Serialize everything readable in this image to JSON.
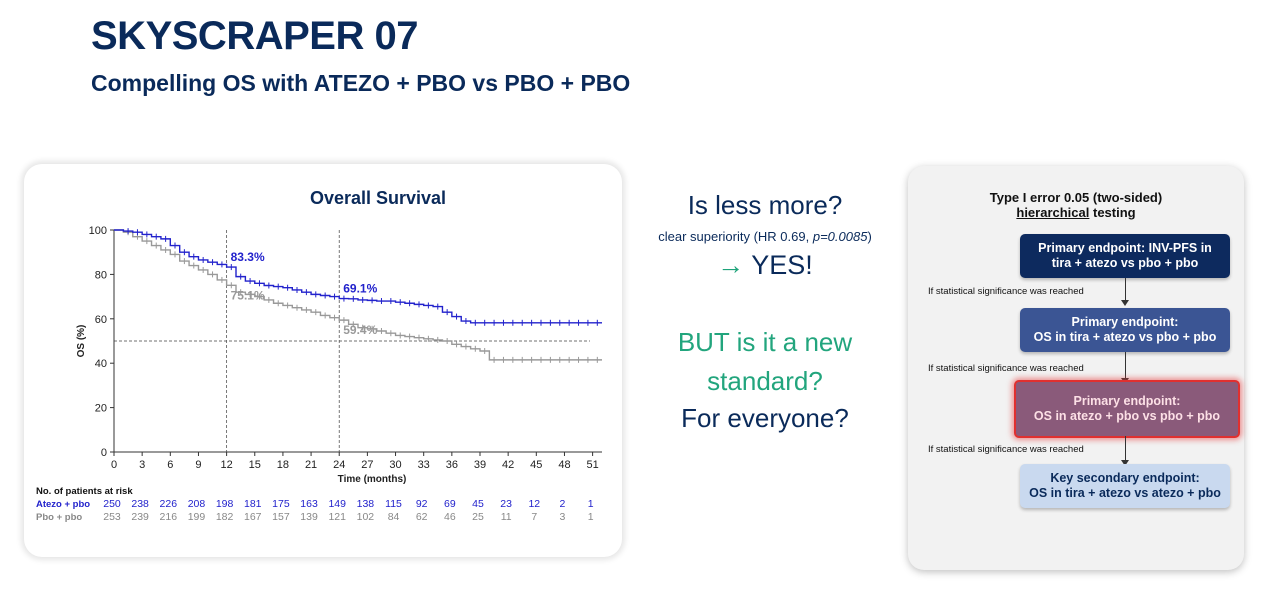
{
  "slide": {
    "title": "SKYSCRAPER 07",
    "subtitle": "Compelling OS with ATEZO + PBO vs PBO + PBO"
  },
  "chart_data": {
    "type": "line",
    "title": "Overall Survival",
    "xlabel": "Time (months)",
    "ylabel": "OS (%)",
    "xlim": [
      0,
      52
    ],
    "ylim": [
      0,
      100
    ],
    "x_ticks": [
      0,
      3,
      6,
      9,
      12,
      15,
      18,
      21,
      24,
      27,
      30,
      33,
      36,
      39,
      42,
      45,
      48,
      51
    ],
    "y_ticks": [
      0,
      20,
      40,
      60,
      80,
      100
    ],
    "colors": {
      "atezo": "#2222cc",
      "pbo": "#999999"
    },
    "series": [
      {
        "name": "Atezo + pbo",
        "x": [
          0,
          1,
          2,
          3,
          4,
          5,
          6,
          7,
          8,
          9,
          10,
          11,
          12,
          13,
          14,
          15,
          16,
          17,
          18,
          19,
          20,
          21,
          22,
          23,
          24,
          25,
          26,
          27,
          28,
          29,
          30,
          31,
          32,
          33,
          34,
          35,
          36,
          37,
          38,
          39,
          40,
          41,
          42,
          43,
          44,
          45,
          46,
          47,
          48,
          49,
          50,
          51,
          52
        ],
        "y": [
          100,
          99.5,
          99,
          98,
          97,
          96,
          93,
          90,
          88,
          86.5,
          85.5,
          84.5,
          83.3,
          79,
          77,
          76,
          75,
          74.5,
          74,
          73,
          72,
          71,
          70.5,
          70,
          69.1,
          69,
          68.5,
          68.3,
          68,
          68,
          67.5,
          67,
          66.5,
          66,
          65.5,
          63,
          61,
          59,
          58.2,
          58.2,
          58.2,
          58.2,
          58.2,
          58.2,
          58.2,
          58.2,
          58.2,
          58.2,
          58.2,
          58.2,
          58.2,
          58.2,
          58.2
        ]
      },
      {
        "name": "Pbo + pbo",
        "x": [
          0,
          1,
          2,
          3,
          4,
          5,
          6,
          7,
          8,
          9,
          10,
          11,
          12,
          13,
          14,
          15,
          16,
          17,
          18,
          19,
          20,
          21,
          22,
          23,
          24,
          25,
          26,
          27,
          28,
          29,
          30,
          31,
          32,
          33,
          34,
          35,
          36,
          37,
          38,
          39,
          40,
          41,
          42,
          43,
          44,
          45,
          46,
          47,
          48,
          49,
          50,
          51,
          52
        ],
        "y": [
          100,
          99,
          97,
          95,
          93,
          91,
          89,
          86,
          84,
          82,
          80,
          77.5,
          75.1,
          72,
          71,
          70,
          68.5,
          67,
          66,
          65,
          64,
          63,
          61.5,
          60.5,
          59.4,
          57.5,
          56,
          55.5,
          54.5,
          53.5,
          52.5,
          52,
          51.5,
          51,
          50.5,
          50,
          48.5,
          47.5,
          46.5,
          45.5,
          41.5,
          41.5,
          41.5,
          41.5,
          41.5,
          41.5,
          41.5,
          41.5,
          41.5,
          41.5,
          41.5,
          41.5,
          41.5
        ]
      }
    ],
    "reference_line_y": 50,
    "annotations": [
      {
        "text": "83.3%",
        "x": 12,
        "y": 83.3,
        "series": "atezo"
      },
      {
        "text": "75.1%",
        "x": 12,
        "y": 75.1,
        "series": "pbo"
      },
      {
        "text": "69.1%",
        "x": 24,
        "y": 69.1,
        "series": "atezo"
      },
      {
        "text": "59.4%",
        "x": 24,
        "y": 59.4,
        "series": "pbo"
      }
    ],
    "risk_table": {
      "title": "No. of patients at risk",
      "rows": [
        {
          "label": "Atezo + pbo",
          "values": [
            "250",
            "238",
            "226",
            "208",
            "198",
            "181",
            "175",
            "163",
            "149",
            "138",
            "115",
            "92",
            "69",
            "45",
            "23",
            "12",
            "2",
            "1"
          ]
        },
        {
          "label": "Pbo + pbo",
          "values": [
            "253",
            "239",
            "216",
            "199",
            "182",
            "167",
            "157",
            "139",
            "121",
            "102",
            "84",
            "62",
            "46",
            "25",
            "11",
            "7",
            "3",
            "1"
          ]
        }
      ]
    }
  },
  "middle": {
    "q1": "Is less more?",
    "detail_pre": "clear superiority (HR 0.69, ",
    "detail_p": "p=0.0085",
    "detail_post": ")",
    "arrow": "→",
    "yes": "YES!",
    "but1": "BUT is it a new",
    "but2": "standard?",
    "everyone": "For everyone?"
  },
  "diagram": {
    "title1": "Type I error 0.05 (two-sided)",
    "title2": "hierarchical",
    "title2_rest": " testing",
    "condition": "If statistical significance was reached",
    "box1": {
      "line1": "Primary endpoint: INV-PFS in",
      "line2": "tira + atezo vs pbo + pbo"
    },
    "box2": {
      "line1": "Primary endpoint:",
      "line2": "OS in tira + atezo vs pbo + pbo"
    },
    "box3": {
      "line1": "Primary endpoint:",
      "line2": "OS in atezo + pbo vs pbo + pbo"
    },
    "box4": {
      "line1": "Key secondary endpoint:",
      "line2": "OS in tira + atezo vs atezo + pbo"
    },
    "colors": {
      "box1": "#0d2a5e",
      "box2": "#3b5594",
      "box3": "#8a5a7a",
      "box3_border": "#e03030",
      "box4": "#c9d9ef"
    }
  }
}
